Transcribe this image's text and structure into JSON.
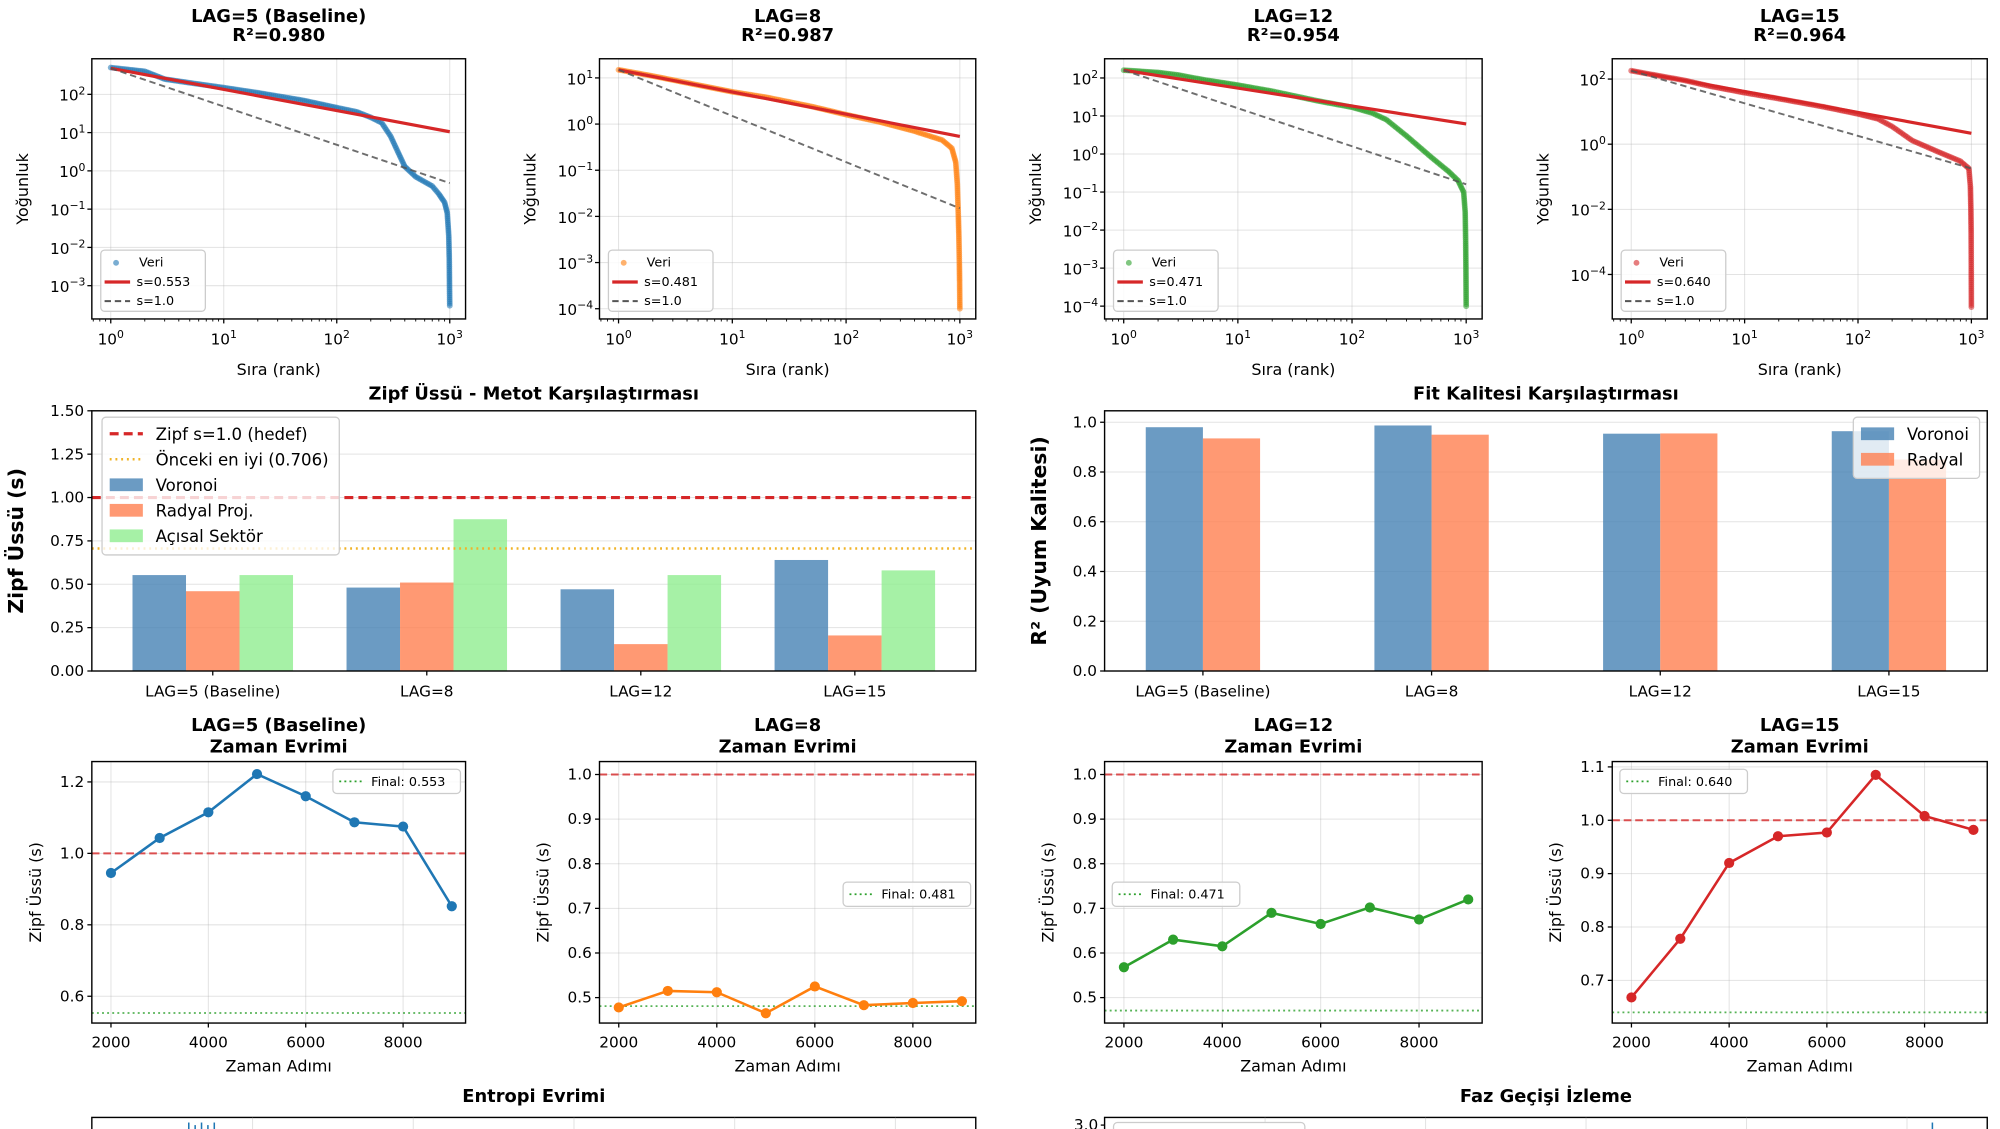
{
  "chart_data": [
    {
      "id": "rank-lag5",
      "type": "scatter",
      "xscale": "log",
      "yscale": "log",
      "grid": true,
      "title_lines": [
        "LAG=5 (Baseline)",
        "R²=0.980"
      ],
      "xlabel": "Sıra (rank)",
      "ylabel": "Yoğunluk",
      "xlim": [
        0.68,
        1380
      ],
      "ylim": [
        0.000135,
        850
      ],
      "xticks": [
        1,
        10,
        100,
        1000
      ],
      "yticks": [
        0.001,
        0.01,
        0.1,
        1,
        10,
        100
      ],
      "color": "#1f77b4",
      "points": [
        [
          1,
          500
        ],
        [
          2,
          400
        ],
        [
          3,
          250
        ],
        [
          5,
          200
        ],
        [
          10,
          150
        ],
        [
          20,
          110
        ],
        [
          50,
          70
        ],
        [
          100,
          45
        ],
        [
          150,
          35
        ],
        [
          200,
          25
        ],
        [
          250,
          18
        ],
        [
          300,
          8
        ],
        [
          350,
          3
        ],
        [
          400,
          1.3
        ],
        [
          500,
          0.7
        ],
        [
          700,
          0.4
        ],
        [
          800,
          0.25
        ],
        [
          900,
          0.15
        ],
        [
          950,
          0.08
        ],
        [
          980,
          0.02
        ],
        [
          990,
          0.005
        ],
        [
          995,
          0.001
        ],
        [
          1000,
          0.0003
        ]
      ],
      "fit": {
        "s": 0.553,
        "intercept": 480,
        "label": "s=0.553",
        "color": "#d62728"
      },
      "reference": {
        "s": 1.0,
        "intercept": 480,
        "label": "s=1.0",
        "color": "#555555"
      },
      "legend": {
        "data_label": "Veri",
        "placement": "lower-left"
      }
    },
    {
      "id": "rank-lag8",
      "type": "scatter",
      "xscale": "log",
      "yscale": "log",
      "grid": true,
      "title_lines": [
        "LAG=8",
        "R²=0.987"
      ],
      "xlabel": "Sıra (rank)",
      "ylabel": "Yoğunluk",
      "xlim": [
        0.68,
        1380
      ],
      "ylim": [
        6e-05,
        26
      ],
      "xticks": [
        1,
        10,
        100,
        1000
      ],
      "yticks": [
        0.0001,
        0.001,
        0.01,
        0.1,
        1,
        10
      ],
      "color": "#ff7f0e",
      "points": [
        [
          1,
          15
        ],
        [
          2,
          11
        ],
        [
          5,
          7
        ],
        [
          10,
          5
        ],
        [
          20,
          3.8
        ],
        [
          50,
          2.4
        ],
        [
          100,
          1.6
        ],
        [
          200,
          1.1
        ],
        [
          400,
          0.7
        ],
        [
          700,
          0.45
        ],
        [
          850,
          0.3
        ],
        [
          920,
          0.15
        ],
        [
          950,
          0.05
        ],
        [
          970,
          0.01
        ],
        [
          980,
          0.004
        ],
        [
          990,
          0.001
        ],
        [
          995,
          0.0004
        ],
        [
          1000,
          0.0001
        ]
      ],
      "fit": {
        "s": 0.481,
        "intercept": 15,
        "label": "s=0.481",
        "color": "#d62728"
      },
      "reference": {
        "s": 1.0,
        "intercept": 15,
        "label": "s=1.0",
        "color": "#555555"
      },
      "legend": {
        "data_label": "Veri",
        "placement": "lower-left"
      }
    },
    {
      "id": "rank-lag12",
      "type": "scatter",
      "xscale": "log",
      "yscale": "log",
      "grid": true,
      "title_lines": [
        "LAG=12",
        "R²=0.954"
      ],
      "xlabel": "Sıra (rank)",
      "ylabel": "Yoğunluk",
      "xlim": [
        0.68,
        1380
      ],
      "ylim": [
        4.6e-05,
        320
      ],
      "xticks": [
        1,
        10,
        100,
        1000
      ],
      "yticks": [
        0.0001,
        0.001,
        0.01,
        0.1,
        1,
        10,
        100
      ],
      "color": "#2ca02c",
      "points": [
        [
          1,
          160
        ],
        [
          2,
          140
        ],
        [
          3,
          120
        ],
        [
          5,
          90
        ],
        [
          10,
          65
        ],
        [
          20,
          45
        ],
        [
          50,
          25
        ],
        [
          100,
          17
        ],
        [
          150,
          12
        ],
        [
          200,
          8
        ],
        [
          300,
          3
        ],
        [
          500,
          0.8
        ],
        [
          700,
          0.35
        ],
        [
          850,
          0.2
        ],
        [
          950,
          0.1
        ],
        [
          980,
          0.03
        ],
        [
          990,
          0.005
        ],
        [
          995,
          0.001
        ],
        [
          1000,
          0.0001
        ]
      ],
      "fit": {
        "s": 0.471,
        "intercept": 160,
        "label": "s=0.471",
        "color": "#d62728"
      },
      "reference": {
        "s": 1.0,
        "intercept": 160,
        "label": "s=1.0",
        "color": "#555555"
      },
      "legend": {
        "data_label": "Veri",
        "placement": "lower-left"
      }
    },
    {
      "id": "rank-lag15",
      "type": "scatter",
      "xscale": "log",
      "yscale": "log",
      "grid": true,
      "title_lines": [
        "LAG=15",
        "R²=0.964"
      ],
      "xlabel": "Sıra (rank)",
      "ylabel": "Yoğunluk",
      "xlim": [
        0.68,
        1380
      ],
      "ylim": [
        4.3e-06,
        420
      ],
      "xticks": [
        1,
        10,
        100,
        1000
      ],
      "yticks": [
        0.0001,
        0.01,
        1,
        100
      ],
      "color": "#d62728",
      "points": [
        [
          1,
          180
        ],
        [
          3,
          90
        ],
        [
          5,
          60
        ],
        [
          10,
          38
        ],
        [
          20,
          25
        ],
        [
          50,
          14
        ],
        [
          100,
          8.5
        ],
        [
          150,
          6
        ],
        [
          200,
          3.5
        ],
        [
          300,
          1.3
        ],
        [
          500,
          0.6
        ],
        [
          800,
          0.3
        ],
        [
          950,
          0.18
        ],
        [
          980,
          0.05
        ],
        [
          990,
          0.01
        ],
        [
          995,
          0.002
        ],
        [
          1000,
          1e-05
        ]
      ],
      "fit": {
        "s": 0.64,
        "intercept": 180,
        "label": "s=0.640",
        "color": "#d62728"
      },
      "reference": {
        "s": 1.0,
        "intercept": 180,
        "label": "s=1.0",
        "color": "#555555"
      },
      "legend": {
        "data_label": "Veri",
        "placement": "lower-left"
      }
    },
    {
      "id": "zipf-bars",
      "type": "bar",
      "grid": true,
      "title": "Zipf Üssü - Metot Karşılaştırması",
      "xlabel": "",
      "ylabel": "Zipf Üssü (s)",
      "categories": [
        "LAG=5 (Baseline)",
        "LAG=8",
        "LAG=12",
        "LAG=15"
      ],
      "ylim": [
        0,
        1.5
      ],
      "yticks": [
        0,
        0.25,
        0.5,
        0.75,
        1.0,
        1.25,
        1.5
      ],
      "ytick_decimals": 2,
      "series": [
        {
          "name": "Voronoi",
          "color": "#4682b4",
          "values": [
            0.553,
            0.481,
            0.471,
            0.64
          ]
        },
        {
          "name": "Radyal Proj.",
          "color": "#ff7f50",
          "values": [
            0.46,
            0.51,
            0.155,
            0.205
          ]
        },
        {
          "name": "Açısal Sektör",
          "color": "#90ee90",
          "values": [
            0.553,
            0.875,
            0.553,
            0.58
          ]
        }
      ],
      "hlines": [
        {
          "value": 1.0,
          "label": "Zipf s=1.0 (hedef)",
          "color": "#d62728",
          "style": "dashed"
        },
        {
          "value": 0.706,
          "label": "Önceki en iyi (0.706)",
          "color": "#f0b429",
          "style": "dotted"
        }
      ],
      "legend": {
        "placement": "upper-left"
      }
    },
    {
      "id": "r2-bars",
      "type": "bar",
      "grid": true,
      "title": "Fit Kalitesi Karşılaştırması",
      "xlabel": "",
      "ylabel": "R² (Uyum Kalitesi)",
      "categories": [
        "LAG=5 (Baseline)",
        "LAG=8",
        "LAG=12",
        "LAG=15"
      ],
      "ylim": [
        0,
        1.046
      ],
      "yticks": [
        0,
        0.2,
        0.4,
        0.6,
        0.8,
        1.0
      ],
      "ytick_decimals": 1,
      "series": [
        {
          "name": "Voronoi",
          "color": "#4682b4",
          "values": [
            0.98,
            0.987,
            0.954,
            0.964
          ]
        },
        {
          "name": "Radyal",
          "color": "#ff7f50",
          "values": [
            0.935,
            0.95,
            0.955,
            0.85
          ]
        }
      ],
      "hlines": [],
      "legend": {
        "placement": "upper-right"
      }
    },
    {
      "id": "time-lag5",
      "type": "line",
      "grid": true,
      "title_lines": [
        "LAG=5 (Baseline)",
        "Zaman Evrimi"
      ],
      "xlabel": "Zaman Adımı",
      "ylabel": "Zipf Üssü (s)",
      "x": [
        2000,
        3000,
        4000,
        5000,
        6000,
        7000,
        8000,
        9000
      ],
      "values": [
        0.945,
        1.043,
        1.115,
        1.222,
        1.16,
        1.087,
        1.075,
        0.852
      ],
      "xlim": [
        1607,
        9283
      ],
      "ylim": [
        0.525,
        1.257
      ],
      "xticks": [
        2000,
        4000,
        6000,
        8000
      ],
      "yticks": [
        0.6,
        0.8,
        1.0,
        1.2
      ],
      "color": "#1f77b4",
      "target": 1.0,
      "final": 0.553,
      "final_label": "Final: 0.553",
      "legend": {
        "placement": "upper-right"
      }
    },
    {
      "id": "time-lag8",
      "type": "line",
      "grid": true,
      "title_lines": [
        "LAG=8",
        "Zaman Evrimi"
      ],
      "xlabel": "Zaman Adımı",
      "ylabel": "Zipf Üssü (s)",
      "x": [
        2000,
        3000,
        4000,
        5000,
        6000,
        7000,
        8000,
        9000
      ],
      "values": [
        0.478,
        0.515,
        0.512,
        0.465,
        0.525,
        0.483,
        0.488,
        0.492
      ],
      "xlim": [
        1607,
        9283
      ],
      "ylim": [
        0.443,
        1.029
      ],
      "xticks": [
        2000,
        4000,
        6000,
        8000
      ],
      "yticks": [
        0.5,
        0.6,
        0.7,
        0.8,
        0.9,
        1.0
      ],
      "color": "#ff7f0e",
      "target": 1.0,
      "final": 0.481,
      "final_label": "Final: 0.481",
      "legend": {
        "placement": "center-right"
      }
    },
    {
      "id": "time-lag12",
      "type": "line",
      "grid": true,
      "title_lines": [
        "LAG=12",
        "Zaman Evrimi"
      ],
      "xlabel": "Zaman Adımı",
      "ylabel": "Zipf Üssü (s)",
      "x": [
        2000,
        3000,
        4000,
        5000,
        6000,
        7000,
        8000,
        9000
      ],
      "values": [
        0.568,
        0.63,
        0.615,
        0.69,
        0.665,
        0.702,
        0.675,
        0.72
      ],
      "xlim": [
        1607,
        9283
      ],
      "ylim": [
        0.443,
        1.029
      ],
      "xticks": [
        2000,
        4000,
        6000,
        8000
      ],
      "yticks": [
        0.5,
        0.6,
        0.7,
        0.8,
        0.9,
        1.0
      ],
      "color": "#2ca02c",
      "target": 1.0,
      "final": 0.471,
      "final_label": "Final: 0.471",
      "legend": {
        "placement": "center-left"
      }
    },
    {
      "id": "time-lag15",
      "type": "line",
      "grid": true,
      "title_lines": [
        "LAG=15",
        "Zaman Evrimi"
      ],
      "xlabel": "Zaman Adımı",
      "ylabel": "Zipf Üssü (s)",
      "x": [
        2000,
        3000,
        4000,
        5000,
        6000,
        7000,
        8000,
        9000
      ],
      "values": [
        0.668,
        0.778,
        0.92,
        0.97,
        0.977,
        1.085,
        1.008,
        0.982
      ],
      "xlim": [
        1607,
        9283
      ],
      "ylim": [
        0.62,
        1.11
      ],
      "xticks": [
        2000,
        4000,
        6000,
        8000
      ],
      "yticks": [
        0.7,
        0.8,
        0.9,
        1.0,
        1.1
      ],
      "color": "#d62728",
      "target": 1.0,
      "final": 0.64,
      "final_label": "Final: 0.640",
      "legend": {
        "placement": "upper-left"
      }
    },
    {
      "id": "entropy",
      "type": "line",
      "title": "Entropi Evrimi",
      "visible_ytick_labels": []
    },
    {
      "id": "phase",
      "type": "line",
      "title": "Faz Geçişi İzleme",
      "visible_ytick_labels": [
        "3.0"
      ]
    }
  ]
}
